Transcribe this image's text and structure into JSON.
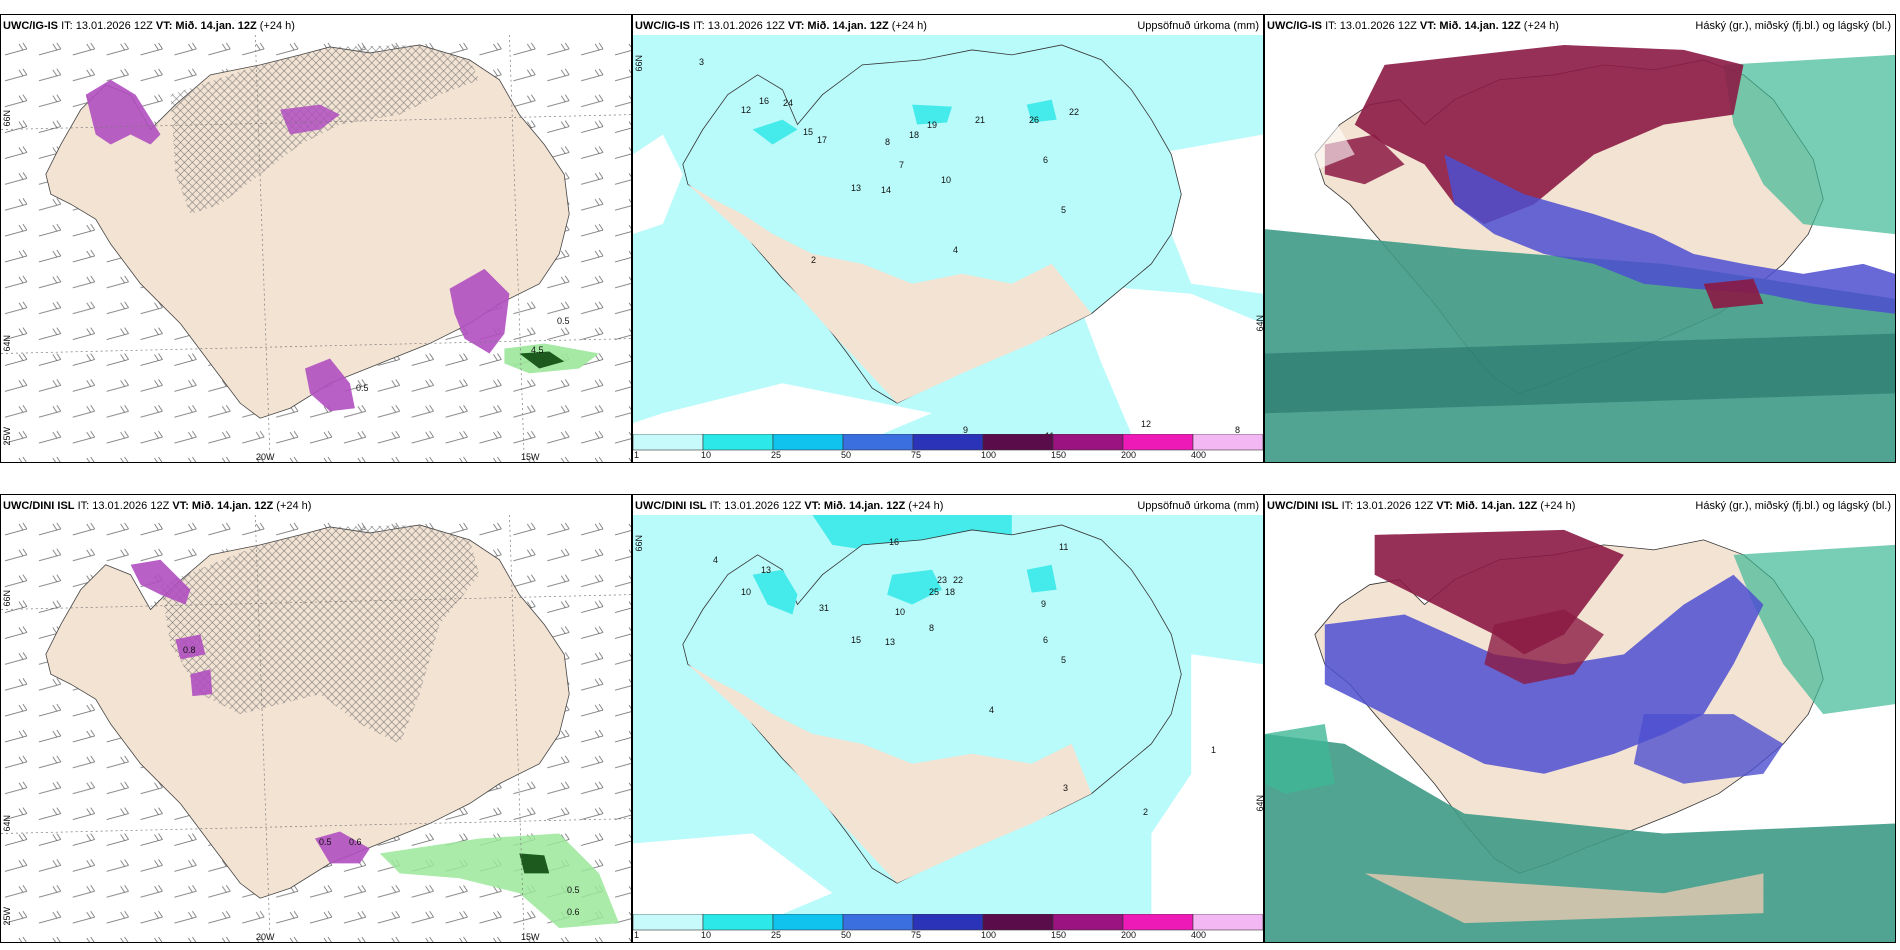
{
  "colors": {
    "land": "#f3e3d3",
    "sea": "#ffffff",
    "precip_light": "#b9fafa",
    "precip_mid": "#45eaea",
    "ice_purple": "#b04fc0",
    "green": "#9be79b",
    "high_cloud": "#8b1a44",
    "mid_cloud": "#4d4fd0",
    "low_cloud": "#3e9a86"
  },
  "rows": [
    {
      "model": "UWC/IG-IS",
      "it": "IT: 13.01.2026 12Z",
      "vt": "VT: Mið. 14.jan. 12Z",
      "lead": "(+24 h)",
      "p1_labels": [
        "0.5",
        "4.5",
        "0.5"
      ],
      "p2_numbers": [
        "3",
        "12",
        "16",
        "24",
        "15",
        "17",
        "8",
        "19",
        "18",
        "21",
        "22",
        "26",
        "13",
        "14",
        "7",
        "10",
        "6",
        "5",
        "4",
        "2",
        "9",
        "8",
        "11",
        "12"
      ],
      "p3_note": ""
    },
    {
      "model": "UWC/DINI ISL",
      "it": "IT: 13.01.2026 12Z",
      "vt": "VT: Mið. 14.jan. 12Z",
      "lead": "(+24 h)",
      "p1_labels": [
        "0.8",
        "0.5",
        "0.6",
        "0.6",
        "0.5"
      ],
      "p2_numbers": [
        "16",
        "4",
        "10",
        "13",
        "31",
        "23",
        "22",
        "25",
        "18",
        "11",
        "9",
        "15",
        "13",
        "10",
        "6",
        "5",
        "4",
        "3",
        "2",
        "8",
        "1"
      ],
      "p3_note": ""
    }
  ],
  "panel_titles": {
    "precip": "Uppsöfnuð úrkoma (mm)",
    "clouds": "Háský (gr.), miðský (fj.bl.) og lágský (bl.)"
  },
  "axis_labels": {
    "lat_66": "66N",
    "lat_64": "64N",
    "lon_25": "25W",
    "lon_20": "20W",
    "lon_15": "15W"
  },
  "colorbar": {
    "ticks": [
      "1",
      "10",
      "25",
      "50",
      "75",
      "100",
      "150",
      "200",
      "400"
    ],
    "colors": [
      "#c7fbfb",
      "#2ce8e8",
      "#10c2ee",
      "#3b6fe0",
      "#2b33b8",
      "#5a0b4a",
      "#9b1380",
      "#ee1ab8",
      "#f3b8f3"
    ]
  }
}
